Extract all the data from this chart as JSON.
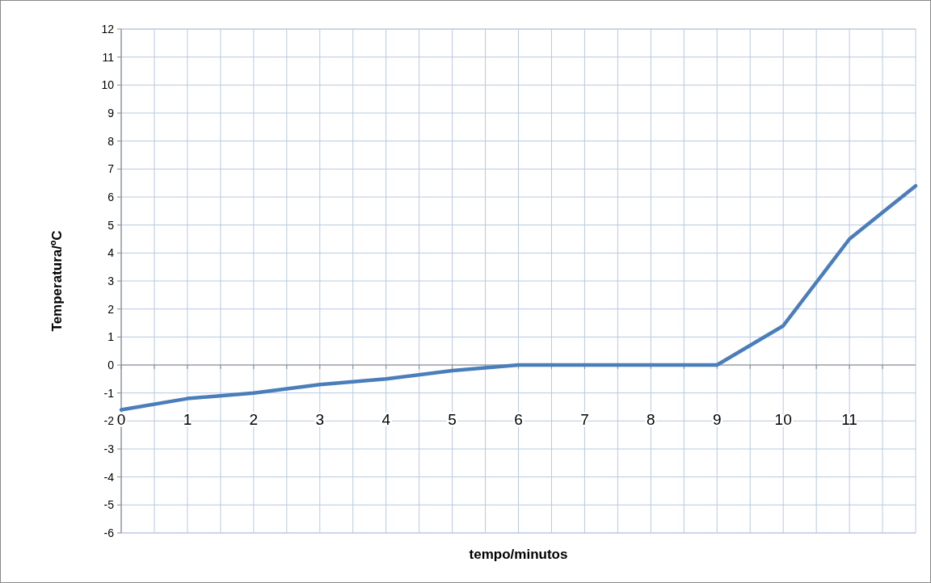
{
  "chart_data": {
    "type": "line",
    "xlabel": "tempo/minutos",
    "ylabel": "Temperatura/ºC",
    "x": [
      0,
      1,
      2,
      3,
      4,
      5,
      6,
      7,
      8,
      9,
      10,
      11,
      12
    ],
    "series": [
      {
        "color": "#4a7ebb",
        "values": [
          -1.6,
          -1.2,
          -1.0,
          -0.7,
          -0.5,
          -0.2,
          0,
          0,
          0,
          0,
          1.4,
          4.5,
          6.4
        ]
      }
    ],
    "xlim": [
      0,
      12
    ],
    "xticks": [
      0,
      {
        "value": 0.5,
        "label": null
      },
      1,
      {
        "value": 1.5,
        "label": null
      },
      2,
      {
        "value": 2.5,
        "label": null
      },
      3,
      {
        "value": 3.5,
        "label": null
      },
      4,
      {
        "value": 4.5,
        "label": null
      },
      5,
      {
        "value": 5.5,
        "label": null
      },
      6,
      {
        "value": 6.5,
        "label": null
      },
      7,
      {
        "value": 7.5,
        "label": null
      },
      8,
      {
        "value": 8.5,
        "label": null
      },
      9,
      {
        "value": 9.5,
        "label": null
      },
      10,
      {
        "value": 10.5,
        "label": null
      },
      11,
      {
        "value": 11.5,
        "label": null
      }
    ],
    "ylim": [
      -6,
      12
    ],
    "yticks": [
      -6,
      -5,
      -4,
      -3,
      -2,
      -1,
      0,
      1,
      2,
      3,
      4,
      5,
      6,
      7,
      8,
      9,
      10,
      11,
      12
    ],
    "grid": true,
    "marker": "none",
    "line_style": "solid"
  }
}
